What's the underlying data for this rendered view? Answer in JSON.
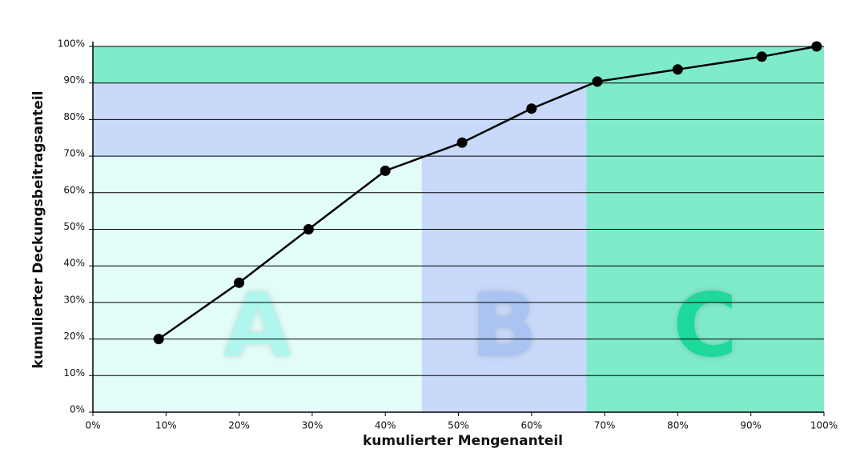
{
  "chart_data": {
    "type": "line",
    "x_label": "kumulierter Mengenanteil",
    "y_label": "kumulierter Deckungsbeitragsanteil",
    "x": [
      9,
      20,
      29.5,
      40,
      50.5,
      60,
      69,
      80,
      91.5,
      99
    ],
    "series": [
      {
        "color": "#000000",
        "values": [
          20,
          35.4,
          50,
          66,
          73.7,
          83,
          90.4,
          93.7,
          97.2,
          100
        ]
      }
    ],
    "xlim": [
      0,
      100
    ],
    "ylim": [
      0,
      100
    ],
    "xticks": [
      {
        "value": 0,
        "label": "0%"
      },
      {
        "value": 10,
        "label": "10%"
      },
      {
        "value": 20,
        "label": "20%"
      },
      {
        "value": 30,
        "label": "30%"
      },
      {
        "value": 40,
        "label": "40%"
      },
      {
        "value": 50,
        "label": "50%"
      },
      {
        "value": 60,
        "label": "60%"
      },
      {
        "value": 70,
        "label": "70%"
      },
      {
        "value": 80,
        "label": "80%"
      },
      {
        "value": 90,
        "label": "90%"
      },
      {
        "value": 100,
        "label": "100%"
      }
    ],
    "yticks": [
      {
        "value": 0,
        "label": "0%"
      },
      {
        "value": 10,
        "label": "10%"
      },
      {
        "value": 20,
        "label": "20%"
      },
      {
        "value": 30,
        "label": "30%"
      },
      {
        "value": 40,
        "label": "40%"
      },
      {
        "value": 50,
        "label": "50%"
      },
      {
        "value": 60,
        "label": "60%"
      },
      {
        "value": 70,
        "label": "70%"
      },
      {
        "value": 80,
        "label": "80%"
      },
      {
        "value": 90,
        "label": "90%"
      },
      {
        "value": 100,
        "label": "100%"
      }
    ],
    "grid": true,
    "zones": [
      {
        "label": "C",
        "xlim": [
          0,
          100
        ],
        "ylim": [
          0,
          100
        ],
        "color": "#80ebcb",
        "label_color": "#1ed99b"
      },
      {
        "label": "B",
        "xlim": [
          0,
          67.5
        ],
        "ylim": [
          0,
          90
        ],
        "color": "#c8d9fa",
        "label_color": "#a9c3f2"
      },
      {
        "label": "A",
        "xlim": [
          0,
          45
        ],
        "ylim": [
          0,
          70
        ],
        "color": "#e2fdf9",
        "label_color": "#aef6ee"
      }
    ]
  }
}
